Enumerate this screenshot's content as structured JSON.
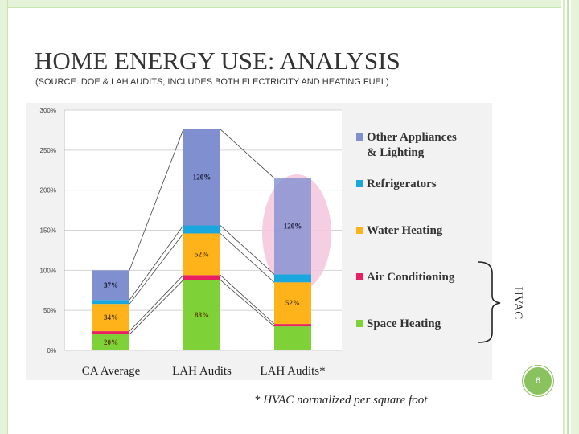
{
  "slide": {
    "title": "HOME ENERGY USE: ANALYSIS",
    "subtitle": "(SOURCE: DOE & LAH AUDITS; INCLUDES BOTH ELECTRICITY AND HEATING FUEL)",
    "footnote": "* HVAC normalized per square foot",
    "page_number": "6",
    "bracket_label": "HVAC"
  },
  "chart_data": {
    "type": "bar",
    "stacked": true,
    "categories": [
      "CA Average",
      "LAH Audits",
      "LAH Audits*"
    ],
    "ylim": [
      0,
      300
    ],
    "y_ticks": [
      "0%",
      "50%",
      "100%",
      "150%",
      "200%",
      "250%",
      "300%"
    ],
    "y_tick_values": [
      0,
      50,
      100,
      150,
      200,
      250,
      300
    ],
    "legend_position": "right",
    "series": [
      {
        "name": "Space Heating",
        "color": "#7ed136",
        "values": [
          20,
          88,
          30
        ]
      },
      {
        "name": "Air Conditioning",
        "color": "#e8205f",
        "values": [
          4,
          6,
          3
        ]
      },
      {
        "name": "Water Heating",
        "color": "#ffb31a",
        "values": [
          34,
          52,
          52
        ]
      },
      {
        "name": "Refrigerators",
        "color": "#1aa7de",
        "values": [
          5,
          10,
          10
        ]
      },
      {
        "name": "Other Appliances & Lighting",
        "color": "#7f8fcf",
        "values": [
          37,
          120,
          120
        ]
      }
    ],
    "data_labels": [
      {
        "category": 0,
        "series": "Space Heating",
        "text": "20%"
      },
      {
        "category": 0,
        "series": "Water Heating",
        "text": "34%"
      },
      {
        "category": 0,
        "series": "Other Appliances & Lighting",
        "text": "37%"
      },
      {
        "category": 1,
        "series": "Space Heating",
        "text": "88%"
      },
      {
        "category": 1,
        "series": "Water Heating",
        "text": "52%"
      },
      {
        "category": 1,
        "series": "Other Appliances & Lighting",
        "text": "120%"
      },
      {
        "category": 2,
        "series": "Water Heating",
        "text": "52%"
      },
      {
        "category": 2,
        "series": "Other Appliances & Lighting",
        "text": "120%"
      }
    ],
    "legend_order": [
      "Other Appliances & Lighting",
      "Refrigerators",
      "Water Heating",
      "Air Conditioning",
      "Space Heating"
    ],
    "highlight": {
      "category": 2,
      "color": "#f5c6dd"
    }
  }
}
